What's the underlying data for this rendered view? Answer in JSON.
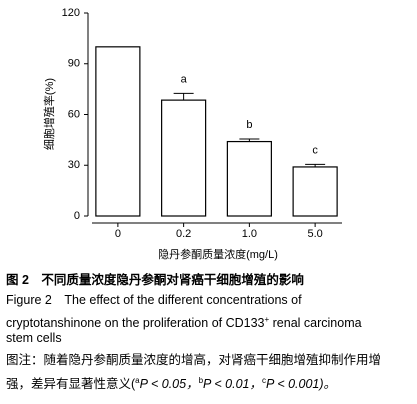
{
  "chart_data": {
    "type": "bar",
    "categories": [
      "0",
      "0.2",
      "1.0",
      "5.0"
    ],
    "values": [
      100,
      68.5,
      44,
      29
    ],
    "errors": [
      null,
      4,
      1.5,
      1.5
    ],
    "annotations": [
      null,
      "a",
      "b",
      "c"
    ],
    "color": "#ffffff",
    "y_label": "细胞增殖率(%)",
    "x_label": "隐丹参酮质量浓度(mg/L)",
    "ylim": [
      0,
      120
    ],
    "yticks": [
      0,
      30,
      60,
      90,
      120
    ]
  },
  "caption": {
    "title": "图 2　不同质量浓度隐丹参酮对肾癌干细胞增殖的影响",
    "english": {
      "line1": "Figure 2　The effect of the different concentrations of",
      "line2": "cryptotanshinone on the proliferation of CD133",
      "line2_sup": "+",
      "line2_end": " renal carcinoma",
      "line3": "stem cells"
    },
    "note": {
      "line1": "图注：随着隐丹参酮质量浓度的增高，对肾癌干细胞增殖抑制作用增",
      "line2": "强，差异有显著性意义(",
      "sup_a": "a",
      "text_a": "P < 0.05，",
      "sup_b": "b",
      "text_b": "P < 0.01，",
      "sup_c": "c",
      "text_c": "P < 0.001)。"
    }
  }
}
